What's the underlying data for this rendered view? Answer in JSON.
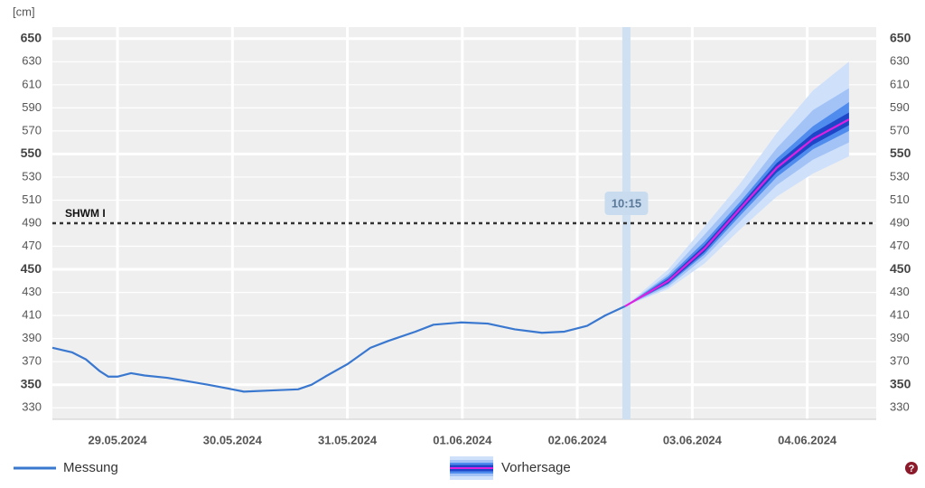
{
  "chart_data": {
    "type": "line",
    "y_label": "[cm]",
    "xlim": [
      -0.566,
      6.6
    ],
    "xticks": [
      {
        "value": 0,
        "label": "29.05.2024"
      },
      {
        "value": 1,
        "label": "30.05.2024"
      },
      {
        "value": 2,
        "label": "31.05.2024"
      },
      {
        "value": 3,
        "label": "01.06.2024"
      },
      {
        "value": 4,
        "label": "02.06.2024"
      },
      {
        "value": 5,
        "label": "03.06.2024"
      },
      {
        "value": 6,
        "label": "04.06.2024"
      }
    ],
    "ylim": [
      320,
      660
    ],
    "yticks": [
      330,
      350,
      370,
      390,
      410,
      430,
      450,
      470,
      490,
      510,
      530,
      550,
      570,
      590,
      610,
      630,
      650
    ],
    "grid": true,
    "now": {
      "x": 4.427,
      "label": "10:15",
      "color": "#cfe0f3"
    },
    "thresholds": [
      {
        "label": "SHWM I",
        "value": 490,
        "color": "#333333"
      }
    ],
    "series": [
      {
        "name": "Messung",
        "color": "#3a78d0",
        "x": [
          -0.566,
          -0.393,
          -0.275,
          -0.157,
          -0.079,
          0,
          0.118,
          0.236,
          0.432,
          0.55,
          0.786,
          0.998,
          1.1,
          1.336,
          1.571,
          1.689,
          1.807,
          2.003,
          2.2,
          2.357,
          2.592,
          2.749,
          2.993,
          3.221,
          3.456,
          3.692,
          3.888,
          4.085,
          4.242,
          4.415
        ],
        "values": [
          382,
          378,
          372,
          362,
          357,
          357,
          360,
          358,
          356,
          354,
          350,
          346,
          344,
          345,
          346,
          350,
          357,
          368,
          382,
          388,
          396,
          402,
          404,
          403,
          398,
          395,
          396,
          401,
          410,
          418
        ]
      },
      {
        "name": "Vorhersage",
        "color": "#e020e0",
        "x": [
          4.415,
          4.792,
          5.106,
          5.42,
          5.734,
          6.049,
          6.363
        ],
        "values": [
          418,
          440,
          468,
          503,
          538,
          563,
          580
        ],
        "bands": [
          {
            "color": "#cfe0fb",
            "lower": [
              418,
              433,
              455,
              485,
              513,
              533,
              548
            ],
            "upper": [
              418,
              450,
              487,
              525,
              568,
              605,
              630
            ]
          },
          {
            "color": "#a3c3f6",
            "lower": [
              418,
              435,
              460,
              492,
              523,
              545,
              560
            ],
            "upper": [
              418,
              446,
              480,
              515,
              555,
              588,
              607
            ]
          },
          {
            "color": "#4f8ced",
            "lower": [
              418,
              437,
              463,
              497,
              530,
              554,
              570
            ],
            "upper": [
              418,
              444,
              474,
              509,
              546,
              574,
              595
            ]
          },
          {
            "color": "#1d46c8",
            "lower": [
              418,
              438,
              465,
              500,
              534,
              558,
              575
            ],
            "upper": [
              418,
              442,
              471,
              506,
              542,
              568,
              586
            ]
          }
        ]
      }
    ]
  }
}
